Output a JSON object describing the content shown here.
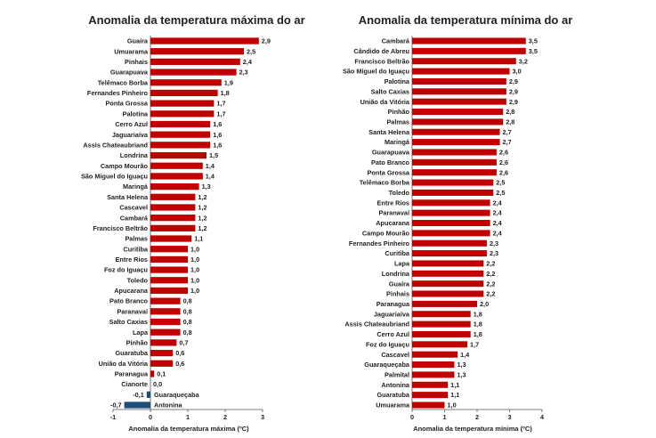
{
  "chart_data": [
    {
      "type": "bar",
      "orientation": "horizontal",
      "title": "Anomalia da temperatura máxima do ar",
      "xlabel": "Anomalia da temperatura máxima (ºC)",
      "xlim": [
        -1,
        3
      ],
      "xticks": [
        "-1",
        "0",
        "1",
        "2",
        "3"
      ],
      "colors": {
        "positive": "#c00000",
        "negative": "#1f4e79"
      },
      "categories": [
        "Guaíra",
        "Umuarama",
        "Pinhais",
        "Guarapuava",
        "Telêmaco Borba",
        "Fernandes Pinheiro",
        "Ponta Grossa",
        "Palotina",
        "Cerro   Azul",
        "Jaguariaíva",
        "Assis  Chateaubriand",
        "Londrina",
        "Campo Mourão",
        "São Miguel do Iguaçu",
        "Maringá",
        "Santa  Helena",
        "Cascavel",
        "Cambará",
        "Francisco  Beltrão",
        "Palmas",
        "Curitiba",
        "Entre  Rios",
        "Foz do Iguaçu",
        "Toledo",
        "Apucarana",
        "Pato Branco",
        "Paranavaí",
        "Salto Caxias",
        "Lapa",
        "Pinhão",
        "Guaratuba",
        "União da Vitória",
        "Paranagua",
        "Cianorte",
        "Guaraqueçaba",
        "Antonina"
      ],
      "values": [
        2.9,
        2.5,
        2.4,
        2.3,
        1.9,
        1.8,
        1.7,
        1.7,
        1.6,
        1.6,
        1.6,
        1.5,
        1.4,
        1.4,
        1.3,
        1.2,
        1.2,
        1.2,
        1.2,
        1.1,
        1.0,
        1.0,
        1.0,
        1.0,
        1.0,
        0.8,
        0.8,
        0.8,
        0.8,
        0.7,
        0.6,
        0.6,
        0.1,
        0.0,
        -0.1,
        -0.7
      ],
      "value_labels": [
        "2,9",
        "2,5",
        "2,4",
        "2,3",
        "1,9",
        "1,8",
        "1,7",
        "1,7",
        "1,6",
        "1,6",
        "1,6",
        "1,5",
        "1,4",
        "1,4",
        "1,3",
        "1,2",
        "1,2",
        "1,2",
        "1,2",
        "1,1",
        "1,0",
        "1,0",
        "1,0",
        "1,0",
        "1,0",
        "0,8",
        "0,8",
        "0,8",
        "0,8",
        "0,7",
        "0,6",
        "0,6",
        "0,1",
        "0,0",
        "-0,1",
        "-0,7"
      ]
    },
    {
      "type": "bar",
      "orientation": "horizontal",
      "title": "Anomalia da temperatura mínima do ar",
      "xlabel": "Anomalia da temperatura mínima (ºC)",
      "xlim": [
        0,
        4
      ],
      "xticks": [
        "0",
        "1",
        "2",
        "3",
        "4"
      ],
      "colors": {
        "positive": "#c00000"
      },
      "categories": [
        "Cambará",
        "Cândido de Abreu",
        "Francisco    Beltrão",
        "São Miguel do Iguaçu",
        "Palotina",
        "Salto Caxias",
        "União da Vitória",
        "Pinhão",
        "Palmas",
        "Santa Helena",
        "Maringá",
        "Guarapuava",
        "Pato Branco",
        "Ponta Grossa",
        "Telêmaco Borba",
        "Toledo",
        "Entre Rios",
        "Paranavaí",
        "Apucarana",
        "Campo Mourão",
        "Fernandes  Pinheiro",
        "Curitiba",
        "Lapa",
        "Londrina",
        "Guaíra",
        "Pinhais",
        "Paranagua",
        "Jaguariaíva",
        "Assis  Chateaubriand",
        "Cerro Azul",
        "Foz do Iguaçu",
        "Cascavel",
        "Guaraqueçaba",
        "Palmital",
        "Antonina",
        "Guaratuba",
        "Umuarama"
      ],
      "values": [
        3.5,
        3.5,
        3.2,
        3.0,
        2.9,
        2.9,
        2.9,
        2.8,
        2.8,
        2.7,
        2.7,
        2.6,
        2.6,
        2.6,
        2.5,
        2.5,
        2.4,
        2.4,
        2.4,
        2.4,
        2.3,
        2.3,
        2.2,
        2.2,
        2.2,
        2.2,
        2.0,
        1.8,
        1.8,
        1.8,
        1.7,
        1.4,
        1.3,
        1.3,
        1.1,
        1.1,
        1.0
      ],
      "value_labels": [
        "3,5",
        "3,5",
        "3,2",
        "3,0",
        "2,9",
        "2,9",
        "2,9",
        "2,8",
        "2,8",
        "2,7",
        "2,7",
        "2,6",
        "2,6",
        "2,6",
        "2,5",
        "2,5",
        "2,4",
        "2,4",
        "2,4",
        "2,4",
        "2,3",
        "2,3",
        "2,2",
        "2,2",
        "2,2",
        "2,2",
        "2,0",
        "1,8",
        "1,8",
        "1,8",
        "1,7",
        "1,4",
        "1,3",
        "1,3",
        "1,1",
        "1,1",
        "1,0"
      ]
    }
  ]
}
